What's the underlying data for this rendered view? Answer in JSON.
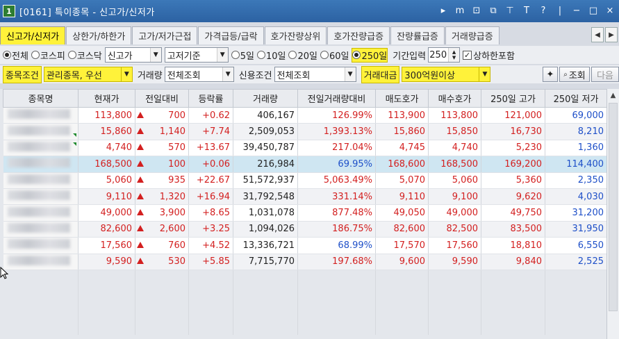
{
  "window": {
    "number": "1",
    "title": "[0161] 특이종목 - 신고가/신저가"
  },
  "title_icons": [
    "▸",
    "m",
    "⊡",
    "⧉",
    "⊤",
    "T",
    "?",
    "|",
    "−",
    "□",
    "×"
  ],
  "tabs": [
    {
      "label": "신고가/신저가",
      "active": true
    },
    {
      "label": "상한가/하한가",
      "active": false
    },
    {
      "label": "고가/저가근접",
      "active": false
    },
    {
      "label": "가격급등/급락",
      "active": false
    },
    {
      "label": "호가잔량상위",
      "active": false
    },
    {
      "label": "호가잔량급증",
      "active": false
    },
    {
      "label": "잔량률급증",
      "active": false
    },
    {
      "label": "거래량급증",
      "active": false
    }
  ],
  "filters": {
    "market": [
      {
        "label": "전체",
        "checked": true
      },
      {
        "label": "코스피",
        "checked": false
      },
      {
        "label": "코스닥",
        "checked": false
      }
    ],
    "type_select": "신고가",
    "basis_select": "고저기준",
    "periods": [
      {
        "label": "5일",
        "checked": false
      },
      {
        "label": "10일",
        "checked": false
      },
      {
        "label": "20일",
        "checked": false
      },
      {
        "label": "60일",
        "checked": false
      },
      {
        "label": "250일",
        "checked": true
      }
    ],
    "period_input_label": "기간입력",
    "period_input_value": "250",
    "include_limit_label": "상하한포함",
    "include_limit_checked": true,
    "stock_condition_label": "종목조건",
    "stock_condition_value": "관리종목, 우선",
    "volume_label": "거래량",
    "volume_value": "전체조회",
    "credit_label": "신용조건",
    "credit_value": "전체조회",
    "amount_label": "거래대금",
    "amount_value": "300억원이상",
    "search_button": "조회",
    "next_button": "다음"
  },
  "table": {
    "headers": [
      "종목명",
      "현재가",
      "전일대비",
      "등락률",
      "거래량",
      "전일거래량대비",
      "매도호가",
      "매수호가",
      "250일 고가",
      "250일 저가"
    ],
    "rows": [
      {
        "price": "113,800",
        "change": "700",
        "rate": "+0.62",
        "volume": "406,167",
        "vol_ratio": "126.99%",
        "ask": "113,900",
        "bid": "113,800",
        "high": "121,000",
        "low": "69,000",
        "ratio_color": "red",
        "ask_color": "red",
        "bid_color": "red",
        "high_color": "red",
        "low_color": "blue",
        "selected": false
      },
      {
        "price": "15,860",
        "change": "1,140",
        "rate": "+7.74",
        "volume": "2,509,053",
        "vol_ratio": "1,393.13%",
        "ask": "15,860",
        "bid": "15,850",
        "high": "16,730",
        "low": "8,210",
        "ratio_color": "red",
        "ask_color": "red",
        "bid_color": "red",
        "high_color": "red",
        "low_color": "blue",
        "selected": false
      },
      {
        "price": "4,740",
        "change": "570",
        "rate": "+13.67",
        "volume": "39,450,787",
        "vol_ratio": "217.04%",
        "ask": "4,745",
        "bid": "4,740",
        "high": "5,230",
        "low": "1,360",
        "ratio_color": "red",
        "ask_color": "red",
        "bid_color": "red",
        "high_color": "red",
        "low_color": "blue",
        "selected": false
      },
      {
        "price": "168,500",
        "change": "100",
        "rate": "+0.06",
        "volume": "216,984",
        "vol_ratio": "69.95%",
        "ask": "168,600",
        "bid": "168,500",
        "high": "169,200",
        "low": "114,400",
        "ratio_color": "blue",
        "ask_color": "red",
        "bid_color": "red",
        "high_color": "red",
        "low_color": "blue",
        "selected": true
      },
      {
        "price": "5,060",
        "change": "935",
        "rate": "+22.67",
        "volume": "51,572,937",
        "vol_ratio": "5,063.49%",
        "ask": "5,070",
        "bid": "5,060",
        "high": "5,360",
        "low": "2,350",
        "ratio_color": "red",
        "ask_color": "red",
        "bid_color": "red",
        "high_color": "red",
        "low_color": "blue",
        "selected": false
      },
      {
        "price": "9,110",
        "change": "1,320",
        "rate": "+16.94",
        "volume": "31,792,548",
        "vol_ratio": "331.14%",
        "ask": "9,110",
        "bid": "9,100",
        "high": "9,620",
        "low": "4,030",
        "ratio_color": "red",
        "ask_color": "red",
        "bid_color": "red",
        "high_color": "red",
        "low_color": "blue",
        "selected": false
      },
      {
        "price": "49,000",
        "change": "3,900",
        "rate": "+8.65",
        "volume": "1,031,078",
        "vol_ratio": "877.48%",
        "ask": "49,050",
        "bid": "49,000",
        "high": "49,750",
        "low": "31,200",
        "ratio_color": "red",
        "ask_color": "red",
        "bid_color": "red",
        "high_color": "red",
        "low_color": "blue",
        "selected": false
      },
      {
        "price": "82,600",
        "change": "2,600",
        "rate": "+3.25",
        "volume": "1,094,026",
        "vol_ratio": "186.75%",
        "ask": "82,600",
        "bid": "82,500",
        "high": "83,500",
        "low": "31,950",
        "ratio_color": "red",
        "ask_color": "red",
        "bid_color": "red",
        "high_color": "red",
        "low_color": "blue",
        "selected": false
      },
      {
        "price": "17,560",
        "change": "760",
        "rate": "+4.52",
        "volume": "13,336,721",
        "vol_ratio": "68.99%",
        "ask": "17,570",
        "bid": "17,560",
        "high": "18,810",
        "low": "6,550",
        "ratio_color": "blue",
        "ask_color": "red",
        "bid_color": "red",
        "high_color": "red",
        "low_color": "blue",
        "selected": false
      },
      {
        "price": "9,590",
        "change": "530",
        "rate": "+5.85",
        "volume": "7,715,770",
        "vol_ratio": "197.68%",
        "ask": "9,600",
        "bid": "9,590",
        "high": "9,840",
        "low": "2,525",
        "ratio_color": "red",
        "ask_color": "red",
        "bid_color": "red",
        "high_color": "red",
        "low_color": "blue",
        "selected": false
      }
    ]
  },
  "colors": {
    "up": "#d32020",
    "down": "#1e4fc8",
    "highlight": "#fff23a",
    "titlebar": "#2c62a3",
    "selected_row": "#cfe6f2"
  }
}
